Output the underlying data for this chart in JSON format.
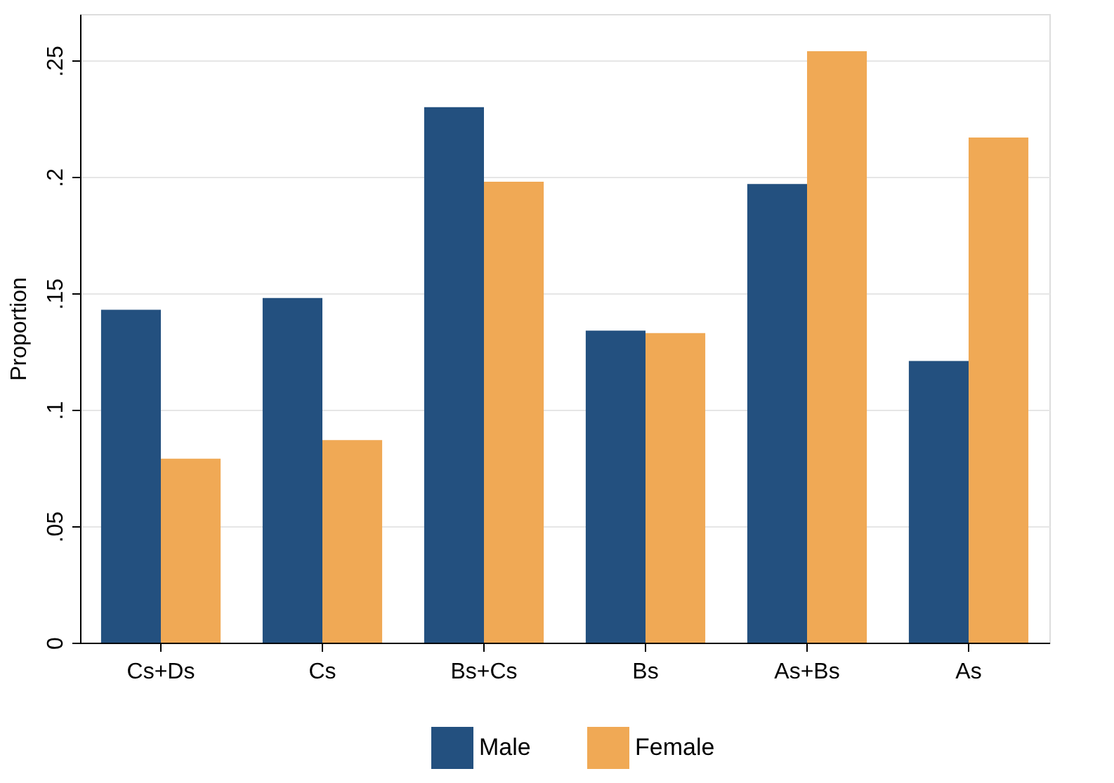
{
  "chart_data": {
    "type": "bar",
    "ylabel": "Proportion",
    "categories": [
      "Cs+Ds",
      "Cs",
      "Bs+Cs",
      "Bs",
      "As+Bs",
      "As"
    ],
    "series": [
      {
        "name": "Male",
        "color": "#23507f",
        "values": [
          0.143,
          0.148,
          0.23,
          0.134,
          0.197,
          0.121
        ]
      },
      {
        "name": "Female",
        "color": "#f0a955",
        "values": [
          0.079,
          0.087,
          0.198,
          0.133,
          0.254,
          0.217
        ]
      }
    ],
    "ylim": [
      0,
      0.27
    ],
    "yticks": [
      0,
      {
        "value": 0.05,
        "label": ".05"
      },
      {
        "value": 0.1,
        "label": ".1"
      },
      {
        "value": 0.15,
        "label": ".15"
      },
      {
        "value": 0.2,
        "label": ".2"
      },
      {
        "value": 0.25,
        "label": ".25"
      }
    ],
    "grid": "y",
    "legend": "bottom"
  }
}
